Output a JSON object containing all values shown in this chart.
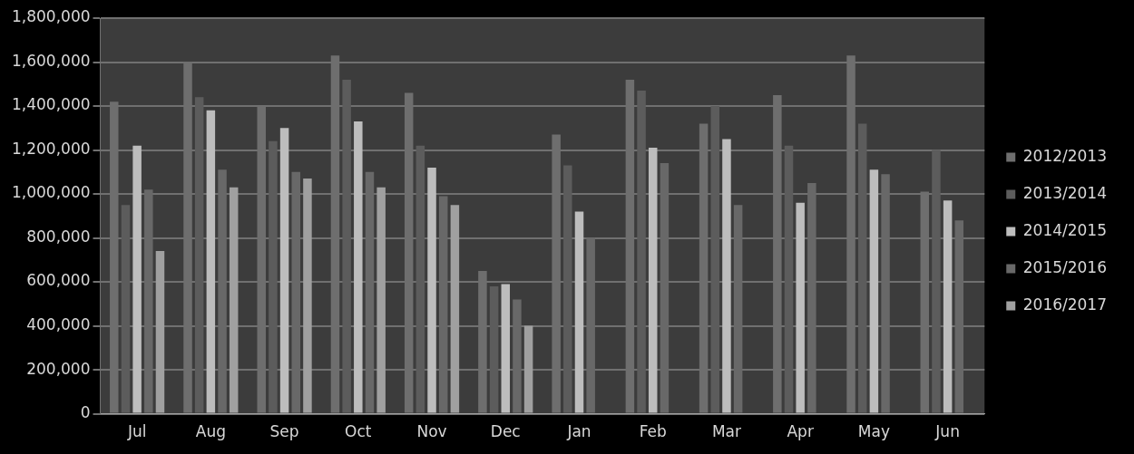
{
  "chart_data": {
    "type": "bar",
    "categories": [
      "Jul",
      "Aug",
      "Sep",
      "Oct",
      "Nov",
      "Dec",
      "Jan",
      "Feb",
      "Mar",
      "Apr",
      "May",
      "Jun"
    ],
    "series": [
      {
        "name": "2012/2013",
        "color": "#6e6e6e",
        "values": [
          1420000,
          1600000,
          1400000,
          1630000,
          1460000,
          650000,
          1270000,
          1520000,
          1320000,
          1450000,
          1630000,
          1010000
        ]
      },
      {
        "name": "2013/2014",
        "color": "#5c5c5c",
        "values": [
          950000,
          1440000,
          1240000,
          1520000,
          1220000,
          580000,
          1130000,
          1470000,
          1400000,
          1220000,
          1320000,
          1200000
        ]
      },
      {
        "name": "2014/2015",
        "color": "#bdbdbd",
        "values": [
          1220000,
          1380000,
          1300000,
          1330000,
          1120000,
          590000,
          920000,
          1210000,
          1250000,
          960000,
          1110000,
          970000
        ]
      },
      {
        "name": "2015/2016",
        "color": "#686868",
        "values": [
          1020000,
          1110000,
          1100000,
          1100000,
          990000,
          520000,
          800000,
          1140000,
          950000,
          1050000,
          1090000,
          880000
        ]
      },
      {
        "name": "2016/2017",
        "color": "#a0a0a0",
        "values": [
          740000,
          1030000,
          1070000,
          1030000,
          950000,
          400000,
          null,
          null,
          null,
          null,
          null,
          null
        ]
      }
    ],
    "ylim": [
      0,
      1800000
    ],
    "yticks": [
      0,
      {
        "value": 200000,
        "label": "200,000"
      },
      {
        "value": 400000,
        "label": "400,000"
      },
      {
        "value": 600000,
        "label": "600,000"
      },
      {
        "value": 800000,
        "label": "800,000"
      },
      {
        "value": 1000000,
        "label": "1,000,000"
      },
      {
        "value": 1200000,
        "label": "1,200,000"
      },
      {
        "value": 1400000,
        "label": "1,400,000"
      },
      {
        "value": 1600000,
        "label": "1,600,000"
      },
      {
        "value": 1800000,
        "label": "1,800,000"
      }
    ],
    "grid": "y",
    "legend": "right"
  }
}
